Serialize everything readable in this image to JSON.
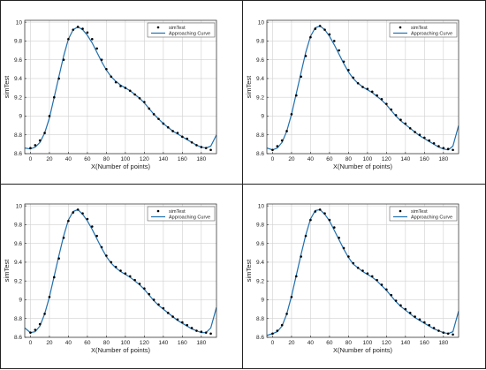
{
  "chart_data": [
    {
      "type": "scatter",
      "xlabel": "X(Number of points)",
      "ylabel": "simTest",
      "xlim": [
        -6,
        196
      ],
      "ylim": [
        8.6,
        10.02
      ],
      "xticks": [
        0,
        20,
        40,
        60,
        80,
        100,
        120,
        140,
        160,
        180
      ],
      "yticks": [
        8.6,
        8.8,
        9,
        9.2,
        9.4,
        9.6,
        9.8,
        10
      ],
      "grid": true,
      "legend": "top-right",
      "colors": {
        "points": "#000000",
        "curve": "#1f6fad"
      },
      "series": [
        {
          "name": "simTest",
          "kind": "points",
          "x": [
            0,
            5,
            10,
            15,
            20,
            25,
            30,
            35,
            40,
            45,
            50,
            55,
            60,
            65,
            70,
            75,
            80,
            85,
            90,
            95,
            100,
            105,
            110,
            115,
            120,
            125,
            130,
            135,
            140,
            145,
            150,
            155,
            160,
            165,
            170,
            175,
            180,
            185,
            190
          ],
          "y": [
            8.66,
            8.69,
            8.74,
            8.82,
            9.0,
            9.2,
            9.4,
            9.6,
            9.82,
            9.92,
            9.95,
            9.93,
            9.89,
            9.82,
            9.72,
            9.6,
            9.5,
            9.42,
            9.36,
            9.32,
            9.3,
            9.27,
            9.23,
            9.19,
            9.15,
            9.08,
            9.02,
            8.97,
            8.92,
            8.88,
            8.84,
            8.82,
            8.78,
            8.76,
            8.72,
            8.69,
            8.67,
            8.66,
            8.64
          ]
        },
        {
          "name": "Approaching Curve",
          "kind": "line",
          "x": [
            -6,
            0,
            5,
            10,
            15,
            20,
            25,
            30,
            35,
            40,
            45,
            50,
            55,
            60,
            65,
            70,
            75,
            80,
            85,
            90,
            95,
            100,
            105,
            110,
            115,
            120,
            125,
            130,
            135,
            140,
            145,
            150,
            155,
            160,
            165,
            170,
            175,
            180,
            185,
            190,
            196
          ],
          "y": [
            8.66,
            8.65,
            8.67,
            8.72,
            8.82,
            8.98,
            9.2,
            9.42,
            9.64,
            9.82,
            9.92,
            9.95,
            9.92,
            9.86,
            9.78,
            9.68,
            9.58,
            9.49,
            9.42,
            9.37,
            9.33,
            9.3,
            9.27,
            9.23,
            9.19,
            9.14,
            9.08,
            9.02,
            8.97,
            8.92,
            8.88,
            8.84,
            8.81,
            8.78,
            8.75,
            8.72,
            8.69,
            8.67,
            8.66,
            8.68,
            8.8
          ]
        }
      ]
    },
    {
      "type": "scatter",
      "xlabel": "X(Number of points)",
      "ylabel": "simTest",
      "xlim": [
        -6,
        196
      ],
      "ylim": [
        8.6,
        10.02
      ],
      "xticks": [
        0,
        20,
        40,
        60,
        80,
        100,
        120,
        140,
        160,
        180
      ],
      "yticks": [
        8.6,
        8.8,
        9,
        9.2,
        9.4,
        9.6,
        9.8,
        10
      ],
      "grid": true,
      "legend": "top-right",
      "colors": {
        "points": "#000000",
        "curve": "#1f6fad"
      },
      "series": [
        {
          "name": "simTest",
          "kind": "points",
          "x": [
            0,
            5,
            10,
            15,
            20,
            25,
            30,
            35,
            40,
            45,
            50,
            55,
            60,
            65,
            70,
            75,
            80,
            85,
            90,
            95,
            100,
            105,
            110,
            115,
            120,
            125,
            130,
            135,
            140,
            145,
            150,
            155,
            160,
            165,
            170,
            175,
            180,
            185,
            190
          ],
          "y": [
            8.64,
            8.68,
            8.74,
            8.84,
            9.02,
            9.22,
            9.42,
            9.64,
            9.84,
            9.93,
            9.96,
            9.92,
            9.87,
            9.8,
            9.7,
            9.58,
            9.49,
            9.41,
            9.35,
            9.31,
            9.29,
            9.26,
            9.22,
            9.18,
            9.13,
            9.07,
            9.01,
            8.96,
            8.92,
            8.87,
            8.83,
            8.8,
            8.77,
            8.74,
            8.71,
            8.68,
            8.66,
            8.65,
            8.64
          ]
        },
        {
          "name": "Approaching Curve",
          "kind": "line",
          "x": [
            -6,
            0,
            5,
            10,
            15,
            20,
            25,
            30,
            35,
            40,
            45,
            50,
            55,
            60,
            65,
            70,
            75,
            80,
            85,
            90,
            95,
            100,
            105,
            110,
            115,
            120,
            125,
            130,
            135,
            140,
            145,
            150,
            155,
            160,
            165,
            170,
            175,
            180,
            185,
            190,
            196
          ],
          "y": [
            8.66,
            8.64,
            8.66,
            8.72,
            8.84,
            9.02,
            9.24,
            9.46,
            9.68,
            9.85,
            9.94,
            9.96,
            9.92,
            9.85,
            9.76,
            9.66,
            9.56,
            9.47,
            9.4,
            9.35,
            9.31,
            9.28,
            9.25,
            9.21,
            9.17,
            9.12,
            9.06,
            9.0,
            8.95,
            8.91,
            8.87,
            8.83,
            8.79,
            8.76,
            8.73,
            8.7,
            8.67,
            8.65,
            8.64,
            8.68,
            8.9
          ]
        }
      ]
    },
    {
      "type": "scatter",
      "xlabel": "X(Number of points)",
      "ylabel": "simTest",
      "xlim": [
        -6,
        196
      ],
      "ylim": [
        8.6,
        10.02
      ],
      "xticks": [
        0,
        20,
        40,
        60,
        80,
        100,
        120,
        140,
        160,
        180
      ],
      "yticks": [
        8.6,
        8.8,
        9,
        9.2,
        9.4,
        9.6,
        9.8,
        10
      ],
      "grid": true,
      "legend": "top-right",
      "colors": {
        "points": "#000000",
        "curve": "#1f6fad"
      },
      "series": [
        {
          "name": "simTest",
          "kind": "points",
          "x": [
            0,
            5,
            10,
            15,
            20,
            25,
            30,
            35,
            40,
            45,
            50,
            55,
            60,
            65,
            70,
            75,
            80,
            85,
            90,
            95,
            100,
            105,
            110,
            115,
            120,
            125,
            130,
            135,
            140,
            145,
            150,
            155,
            160,
            165,
            170,
            175,
            180,
            185,
            190
          ],
          "y": [
            8.65,
            8.68,
            8.74,
            8.85,
            9.03,
            9.24,
            9.44,
            9.66,
            9.84,
            9.93,
            9.96,
            9.92,
            9.86,
            9.78,
            9.68,
            9.56,
            9.47,
            9.4,
            9.35,
            9.31,
            9.28,
            9.25,
            9.21,
            9.17,
            9.12,
            9.06,
            9.0,
            8.95,
            8.91,
            8.86,
            8.82,
            8.79,
            8.76,
            8.73,
            8.7,
            8.67,
            8.66,
            8.65,
            8.64
          ]
        },
        {
          "name": "Approaching Curve",
          "kind": "line",
          "x": [
            -6,
            0,
            5,
            10,
            15,
            20,
            25,
            30,
            35,
            40,
            45,
            50,
            55,
            60,
            65,
            70,
            75,
            80,
            85,
            90,
            95,
            100,
            105,
            110,
            115,
            120,
            125,
            130,
            135,
            140,
            145,
            150,
            155,
            160,
            165,
            170,
            175,
            180,
            185,
            190,
            196
          ],
          "y": [
            8.7,
            8.65,
            8.66,
            8.72,
            8.85,
            9.03,
            9.25,
            9.47,
            9.68,
            9.85,
            9.94,
            9.96,
            9.91,
            9.84,
            9.75,
            9.65,
            9.55,
            9.46,
            9.39,
            9.34,
            9.3,
            9.27,
            9.24,
            9.2,
            9.16,
            9.11,
            9.05,
            8.99,
            8.94,
            8.9,
            8.86,
            8.82,
            8.78,
            8.75,
            8.72,
            8.69,
            8.67,
            8.65,
            8.65,
            8.7,
            8.92
          ]
        }
      ]
    },
    {
      "type": "scatter",
      "xlabel": "X(Number of points)",
      "ylabel": "simTest",
      "xlim": [
        -6,
        196
      ],
      "ylim": [
        8.6,
        10.02
      ],
      "xticks": [
        0,
        20,
        40,
        60,
        80,
        100,
        120,
        140,
        160,
        180
      ],
      "yticks": [
        8.6,
        8.8,
        9,
        9.2,
        9.4,
        9.6,
        9.8,
        10
      ],
      "grid": true,
      "legend": "top-right",
      "colors": {
        "points": "#000000",
        "curve": "#1f6fad"
      },
      "series": [
        {
          "name": "simTest",
          "kind": "points",
          "x": [
            0,
            5,
            10,
            15,
            20,
            25,
            30,
            35,
            40,
            45,
            50,
            55,
            60,
            65,
            70,
            75,
            80,
            85,
            90,
            95,
            100,
            105,
            110,
            115,
            120,
            125,
            130,
            135,
            140,
            145,
            150,
            155,
            160,
            165,
            170,
            175,
            180,
            185,
            190
          ],
          "y": [
            8.64,
            8.67,
            8.73,
            8.85,
            9.03,
            9.25,
            9.46,
            9.68,
            9.85,
            9.94,
            9.96,
            9.92,
            9.85,
            9.77,
            9.66,
            9.55,
            9.46,
            9.39,
            9.34,
            9.31,
            9.28,
            9.25,
            9.21,
            9.16,
            9.11,
            9.05,
            8.99,
            8.94,
            8.9,
            8.86,
            8.82,
            8.79,
            8.76,
            8.73,
            8.7,
            8.67,
            8.65,
            8.64,
            8.63
          ]
        },
        {
          "name": "Approaching Curve",
          "kind": "line",
          "x": [
            -6,
            0,
            5,
            10,
            15,
            20,
            25,
            30,
            35,
            40,
            45,
            50,
            55,
            60,
            65,
            70,
            75,
            80,
            85,
            90,
            95,
            100,
            105,
            110,
            115,
            120,
            125,
            130,
            135,
            140,
            145,
            150,
            155,
            160,
            165,
            170,
            175,
            180,
            185,
            190,
            196
          ],
          "y": [
            8.62,
            8.64,
            8.66,
            8.72,
            8.85,
            9.04,
            9.26,
            9.48,
            9.69,
            9.86,
            9.95,
            9.96,
            9.91,
            9.84,
            9.74,
            9.64,
            9.54,
            9.45,
            9.38,
            9.34,
            9.3,
            9.27,
            9.24,
            9.2,
            9.15,
            9.1,
            9.04,
            8.98,
            8.93,
            8.89,
            8.85,
            8.81,
            8.78,
            8.75,
            8.72,
            8.69,
            8.67,
            8.65,
            8.64,
            8.66,
            8.88
          ]
        }
      ]
    }
  ]
}
